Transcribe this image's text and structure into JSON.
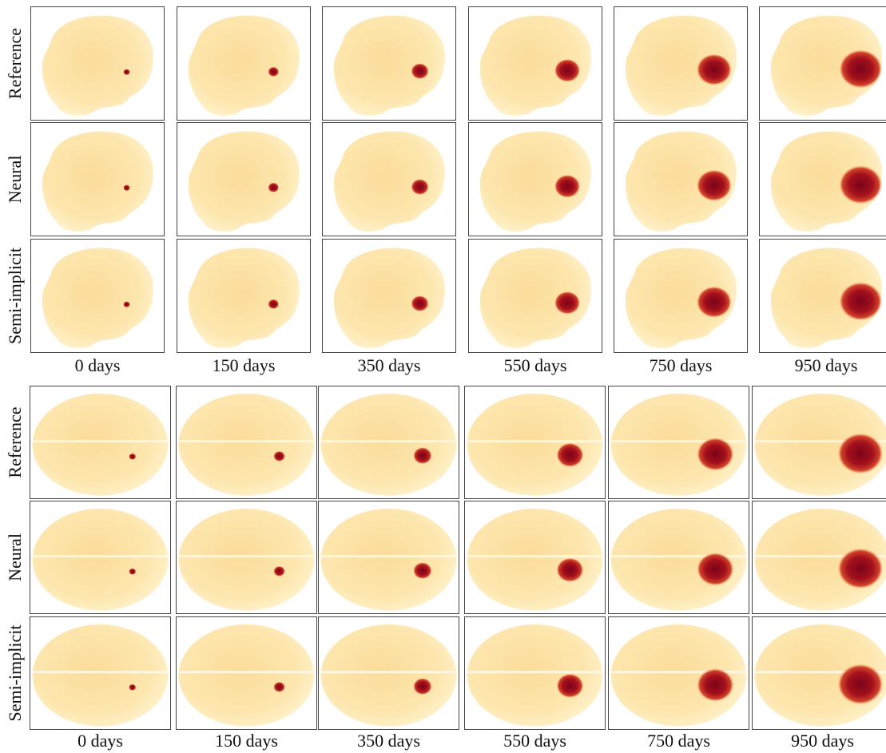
{
  "blocks": [
    {
      "row_labels": [
        "Reference",
        "Neural",
        "Semi-implicit"
      ],
      "column_labels": [
        "0 days",
        "150 days",
        "350 days",
        "550 days",
        "750 days",
        "950 days"
      ]
    },
    {
      "row_labels": [
        "Reference",
        "Neural",
        "Semi-implicit"
      ],
      "column_labels": [
        "0 days",
        "150 days",
        "350 days",
        "550 days",
        "750 days",
        "950 days"
      ]
    }
  ]
}
